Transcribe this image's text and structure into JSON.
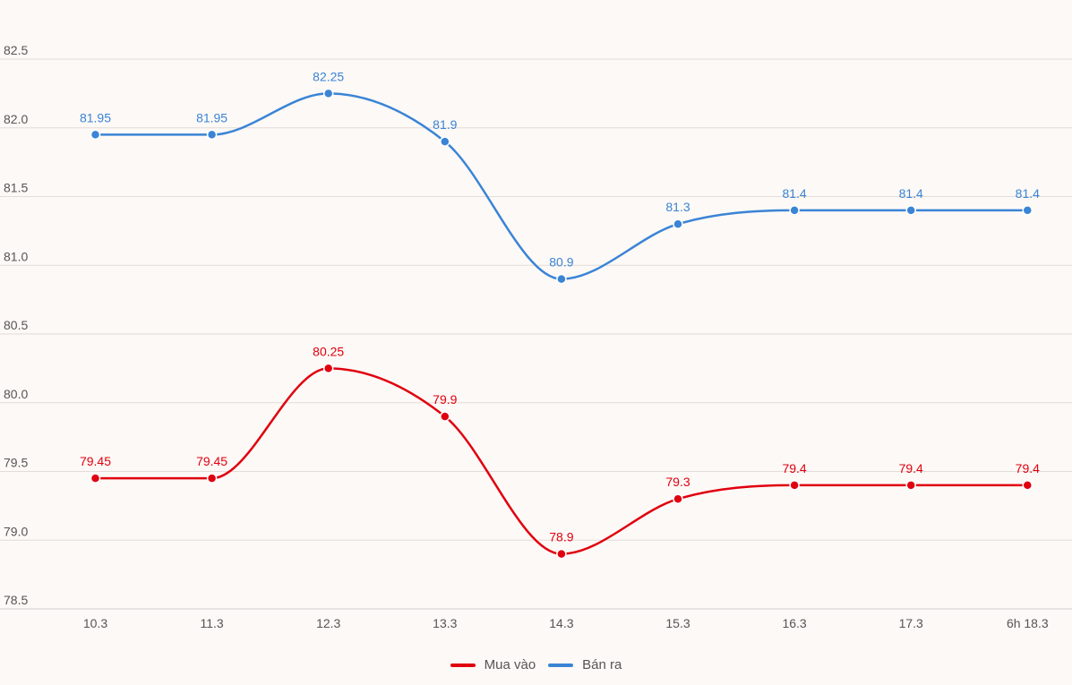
{
  "chart_data": {
    "type": "line",
    "categories": [
      "10.3",
      "11.3",
      "12.3",
      "13.3",
      "14.3",
      "15.3",
      "16.3",
      "17.3",
      "6h 18.3"
    ],
    "series": [
      {
        "name": "Mua vào",
        "color": "#e0000f",
        "values": [
          79.45,
          79.45,
          80.25,
          79.9,
          78.9,
          79.3,
          79.4,
          79.4,
          79.4
        ],
        "labels": [
          "79.45",
          "79.45",
          "80.25",
          "79.9",
          "78.9",
          "79.3",
          "79.4",
          "79.4",
          "79.4"
        ]
      },
      {
        "name": "Bán ra",
        "color": "#3a84d6",
        "values": [
          81.95,
          81.95,
          82.25,
          81.9,
          80.9,
          81.3,
          81.4,
          81.4,
          81.4
        ],
        "labels": [
          "81.95",
          "81.95",
          "82.25",
          "81.9",
          "80.9",
          "81.3",
          "81.4",
          "81.4",
          "81.4"
        ]
      }
    ],
    "yticks": [
      "78.5",
      "79.0",
      "79.5",
      "80.0",
      "80.5",
      "81.0",
      "81.5",
      "82.0",
      "82.5"
    ],
    "ylim": [
      78.5,
      82.5
    ],
    "grid": true,
    "legend_position": "bottom-center",
    "title": "",
    "xlabel": "",
    "ylabel": ""
  }
}
